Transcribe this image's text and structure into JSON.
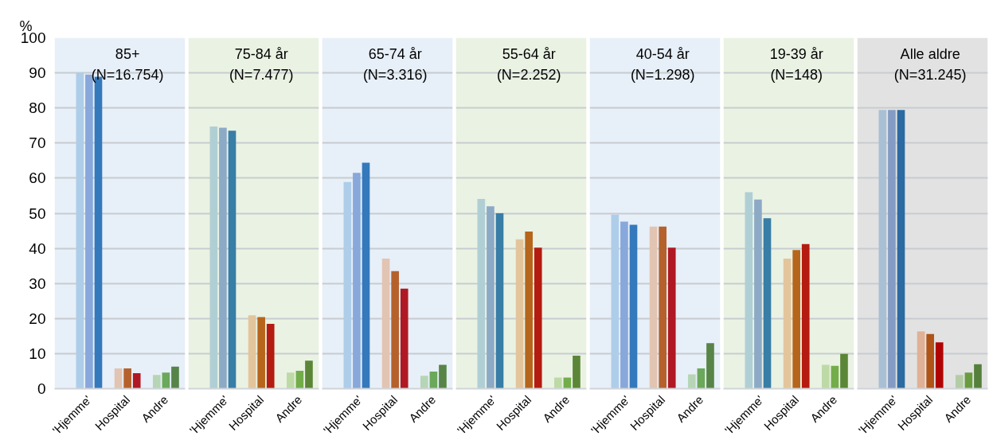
{
  "chart_data": [
    {
      "type": "bar",
      "title": "85+\n(N=16.754)",
      "ylabel": "%",
      "categories": [
        "'Hjemme'",
        "Hospital",
        "Andre"
      ],
      "ylim": [
        0,
        100
      ],
      "yticks": [
        0,
        10,
        20,
        30,
        40,
        50,
        60,
        70,
        80,
        90,
        100
      ],
      "grid": "y",
      "bands": [
        {
          "axis": "y",
          "from": 0,
          "to": 100,
          "color": "#e7eff8"
        }
      ],
      "series": [
        {
          "colors": [
            "#aecde9",
            "#e2c4b2",
            "#b6d5b6"
          ],
          "values": [
            90.1,
            5.8,
            3.9
          ]
        },
        {
          "colors": [
            "#88a7da",
            "#b5612c",
            "#6aa85a"
          ],
          "values": [
            89.5,
            5.8,
            4.6
          ]
        },
        {
          "colors": [
            "#3479bb",
            "#b01923",
            "#578447"
          ],
          "values": [
            88.9,
            4.4,
            6.3
          ]
        }
      ]
    },
    {
      "type": "bar",
      "title": "75-84 år\n(N=7.477)",
      "categories": [
        "'Hjemme'",
        "Hospital",
        "Andre"
      ],
      "ylim": [
        0,
        100
      ],
      "yticks": [
        0,
        10,
        20,
        30,
        40,
        50,
        60,
        70,
        80,
        90,
        100
      ],
      "grid": "y",
      "tick_labels": "x",
      "bands": [
        {
          "axis": "y",
          "from": 0,
          "to": 100,
          "color": "#eaf2e3"
        }
      ],
      "series": [
        {
          "colors": [
            "#b0cfd5",
            "#e3c59c",
            "#bddaa6"
          ],
          "values": [
            74.7,
            20.9,
            4.6
          ]
        },
        {
          "colors": [
            "#8caac6",
            "#b6651b",
            "#72ad4a"
          ],
          "values": [
            74.4,
            20.4,
            5.1
          ]
        },
        {
          "colors": [
            "#387ea6",
            "#b51b10",
            "#5b8637"
          ],
          "values": [
            73.5,
            18.5,
            8.0
          ]
        }
      ]
    },
    {
      "type": "bar",
      "title": "65-74 år\n(N=3.316)",
      "categories": [
        "'Hjemme'",
        "Hospital",
        "Andre"
      ],
      "ylim": [
        0,
        100
      ],
      "yticks": [
        0,
        10,
        20,
        30,
        40,
        50,
        60,
        70,
        80,
        90,
        100
      ],
      "grid": "y",
      "tick_labels": "x",
      "bands": [
        {
          "axis": "y",
          "from": 0,
          "to": 100,
          "color": "#e7eff8"
        }
      ],
      "series": [
        {
          "colors": [
            "#aecde9",
            "#e2c4b2",
            "#b6d5b6"
          ],
          "values": [
            58.9,
            37.1,
            3.7
          ]
        },
        {
          "colors": [
            "#88a7da",
            "#b5612c",
            "#6aa85a"
          ],
          "values": [
            61.5,
            33.5,
            4.9
          ]
        },
        {
          "colors": [
            "#3479bb",
            "#b01923",
            "#578447"
          ],
          "values": [
            64.4,
            28.5,
            6.8
          ]
        }
      ]
    },
    {
      "type": "bar",
      "title": "55-64 år\n(N=2.252)",
      "categories": [
        "'Hjemme'",
        "Hospital",
        "Andre"
      ],
      "ylim": [
        0,
        100
      ],
      "yticks": [
        0,
        10,
        20,
        30,
        40,
        50,
        60,
        70,
        80,
        90,
        100
      ],
      "grid": "y",
      "tick_labels": "x",
      "bands": [
        {
          "axis": "y",
          "from": 0,
          "to": 100,
          "color": "#eaf2e3"
        }
      ],
      "series": [
        {
          "colors": [
            "#b0cfd5",
            "#e3c59c",
            "#bddaa6"
          ],
          "values": [
            54.1,
            42.6,
            3.2
          ]
        },
        {
          "colors": [
            "#8caac6",
            "#b6651b",
            "#72ad4a"
          ],
          "values": [
            52.0,
            44.8,
            3.2
          ]
        },
        {
          "colors": [
            "#387ea6",
            "#b51b10",
            "#5b8637"
          ],
          "values": [
            50.0,
            40.2,
            9.4
          ]
        }
      ]
    },
    {
      "type": "bar",
      "title": "40-54 år\n(N=1.298)",
      "categories": [
        "'Hjemme'",
        "Hospital",
        "Andre"
      ],
      "ylim": [
        0,
        100
      ],
      "yticks": [
        0,
        10,
        20,
        30,
        40,
        50,
        60,
        70,
        80,
        90,
        100
      ],
      "grid": "y",
      "tick_labels": "x",
      "bands": [
        {
          "axis": "y",
          "from": 0,
          "to": 100,
          "color": "#e7eff8"
        }
      ],
      "series": [
        {
          "colors": [
            "#aecde9",
            "#e2c4b2",
            "#b6d5b6"
          ],
          "values": [
            49.6,
            46.2,
            4.1
          ]
        },
        {
          "colors": [
            "#88a7da",
            "#b5612c",
            "#6aa85a"
          ],
          "values": [
            47.6,
            46.2,
            5.8
          ]
        },
        {
          "colors": [
            "#3479bb",
            "#b01923",
            "#578447"
          ],
          "values": [
            46.7,
            40.2,
            13.0
          ]
        }
      ]
    },
    {
      "type": "bar",
      "title": "19-39 år\n(N=148)",
      "categories": [
        "'Hjemme'",
        "Hospital",
        "Andre"
      ],
      "ylim": [
        0,
        100
      ],
      "yticks": [
        0,
        10,
        20,
        30,
        40,
        50,
        60,
        70,
        80,
        90,
        100
      ],
      "grid": "y",
      "tick_labels": "x",
      "bands": [
        {
          "axis": "y",
          "from": 0,
          "to": 100,
          "color": "#eaf2e3"
        }
      ],
      "series": [
        {
          "colors": [
            "#b0cfd5",
            "#e3c59c",
            "#bddaa6"
          ],
          "values": [
            56.0,
            37.1,
            6.8
          ]
        },
        {
          "colors": [
            "#8caac6",
            "#b6651b",
            "#72ad4a"
          ],
          "values": [
            53.9,
            39.5,
            6.5
          ]
        },
        {
          "colors": [
            "#387ea6",
            "#b51b10",
            "#5b8637"
          ],
          "values": [
            48.6,
            41.2,
            9.9
          ]
        }
      ]
    },
    {
      "type": "bar",
      "title": "Alle aldre\n(N=31.245)",
      "categories": [
        "'Hjemme'",
        "Hospital",
        "Andre"
      ],
      "ylim": [
        0,
        100
      ],
      "yticks": [
        0,
        10,
        20,
        30,
        40,
        50,
        60,
        70,
        80,
        90,
        100
      ],
      "grid": "y",
      "tick_labels": "x",
      "bands": [
        {
          "axis": "y",
          "from": 0,
          "to": 100,
          "color": "#e2e2e2"
        }
      ],
      "series": [
        {
          "colors": [
            "#a9bfd4",
            "#e0b196",
            "#b3cca6"
          ],
          "values": [
            79.4,
            16.3,
            3.9
          ]
        },
        {
          "colors": [
            "#849bc4",
            "#b05317",
            "#699c3f"
          ],
          "values": [
            79.4,
            15.6,
            4.6
          ]
        },
        {
          "colors": [
            "#2c6aa2",
            "#b00404",
            "#55803b"
          ],
          "values": [
            79.4,
            13.2,
            7.0
          ]
        }
      ]
    }
  ]
}
